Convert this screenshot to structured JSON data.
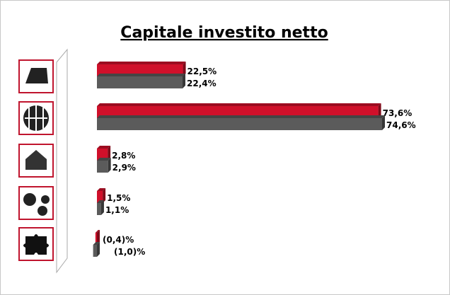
{
  "chart_data": {
    "type": "bar",
    "orientation": "horizontal",
    "title": "Capitale investito netto",
    "categories": [
      null,
      null,
      null,
      null,
      null
    ],
    "series": [
      {
        "color": "#d0102a",
        "values": [
          22.5,
          73.6,
          2.8,
          1.5,
          -0.4
        ],
        "value_labels": [
          "22,5%",
          "73,6%",
          "2,8%",
          "1,5%",
          "(0,4)%"
        ]
      },
      {
        "color": "#5b5b5b",
        "values": [
          22.4,
          74.6,
          2.9,
          1.1,
          -1.0
        ],
        "value_labels": [
          "22,4%",
          "74,6%",
          "2,9%",
          "1,1%",
          "(1,0)%"
        ]
      }
    ]
  }
}
